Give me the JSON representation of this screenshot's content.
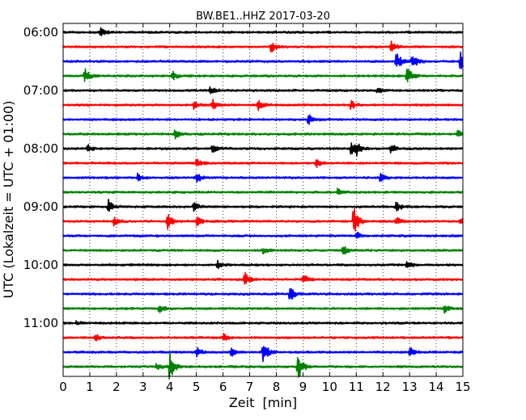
{
  "chart_data": {
    "type": "line",
    "title": "BW.BE1..HHZ 2017-03-20",
    "xlabel": "Zeit  [min]",
    "ylabel": "UTC (Lokalzeit = UTC + 01:00)",
    "xlim": [
      0,
      15
    ],
    "x_ticks": [
      "0",
      "1",
      "2",
      "3",
      "4",
      "5",
      "6",
      "7",
      "8",
      "9",
      "10",
      "11",
      "12",
      "13",
      "14",
      "15"
    ],
    "y_tick_labels": [
      "06:00",
      "07:00",
      "08:00",
      "09:00",
      "10:00",
      "11:00"
    ],
    "y_tick_rows": [
      0,
      4,
      8,
      12,
      16,
      20
    ],
    "grid": "vertical dotted",
    "trace_colors": [
      "#000000",
      "#ff0000",
      "#0000ff",
      "#008000"
    ],
    "row_minutes": 15,
    "rows": [
      {
        "start": "06:00",
        "color": "#000000",
        "events": [
          [
            1.4,
            0.4
          ]
        ]
      },
      {
        "start": "06:15",
        "color": "#ff0000",
        "events": [
          [
            7.8,
            0.5
          ],
          [
            12.3,
            0.6
          ]
        ]
      },
      {
        "start": "06:30",
        "color": "#0000ff",
        "events": [
          [
            12.5,
            1.0
          ],
          [
            13.1,
            0.8
          ],
          [
            14.9,
            1.0
          ]
        ]
      },
      {
        "start": "06:45",
        "color": "#008000",
        "events": [
          [
            0.8,
            0.8
          ],
          [
            4.1,
            0.4
          ],
          [
            12.9,
            1.0
          ]
        ]
      },
      {
        "start": "07:00",
        "color": "#000000",
        "events": [
          [
            5.5,
            0.4
          ],
          [
            11.8,
            0.3
          ]
        ]
      },
      {
        "start": "07:15",
        "color": "#ff0000",
        "events": [
          [
            4.9,
            0.4
          ],
          [
            5.6,
            0.5
          ],
          [
            7.3,
            0.5
          ],
          [
            10.8,
            0.4
          ]
        ]
      },
      {
        "start": "07:30",
        "color": "#0000ff",
        "events": [
          [
            9.2,
            0.6
          ]
        ]
      },
      {
        "start": "07:45",
        "color": "#008000",
        "events": [
          [
            4.2,
            0.4
          ],
          [
            14.8,
            0.4
          ]
        ]
      },
      {
        "start": "08:00",
        "color": "#000000",
        "events": [
          [
            0.9,
            0.4
          ],
          [
            5.6,
            0.4
          ],
          [
            10.8,
            0.6
          ],
          [
            11.0,
            0.6
          ],
          [
            12.3,
            0.5
          ]
        ]
      },
      {
        "start": "08:15",
        "color": "#ff0000",
        "events": [
          [
            5.0,
            0.5
          ],
          [
            9.5,
            0.5
          ]
        ]
      },
      {
        "start": "08:30",
        "color": "#0000ff",
        "events": [
          [
            2.8,
            0.4
          ],
          [
            5.0,
            0.5
          ],
          [
            11.9,
            0.4
          ]
        ]
      },
      {
        "start": "08:45",
        "color": "#008000",
        "events": [
          [
            10.3,
            0.3
          ]
        ]
      },
      {
        "start": "09:00",
        "color": "#000000",
        "events": [
          [
            1.7,
            0.7
          ],
          [
            4.9,
            0.5
          ],
          [
            12.5,
            0.5
          ]
        ]
      },
      {
        "start": "09:15",
        "color": "#ff0000",
        "events": [
          [
            1.9,
            0.4
          ],
          [
            3.9,
            0.8
          ],
          [
            5.0,
            0.5
          ],
          [
            10.9,
            1.7
          ],
          [
            12.5,
            0.4
          ],
          [
            14.9,
            0.4
          ]
        ]
      },
      {
        "start": "09:30",
        "color": "#0000ff",
        "events": [
          [
            11.0,
            0.4
          ]
        ]
      },
      {
        "start": "09:45",
        "color": "#008000",
        "events": [
          [
            10.5,
            0.5
          ],
          [
            7.5,
            0.3
          ]
        ]
      },
      {
        "start": "10:00",
        "color": "#000000",
        "events": [
          [
            5.8,
            0.4
          ],
          [
            12.9,
            0.4
          ]
        ]
      },
      {
        "start": "10:15",
        "color": "#ff0000",
        "events": [
          [
            6.8,
            0.8
          ],
          [
            9.0,
            0.5
          ]
        ]
      },
      {
        "start": "10:30",
        "color": "#0000ff",
        "events": [
          [
            8.5,
            0.8
          ]
        ]
      },
      {
        "start": "10:45",
        "color": "#008000",
        "events": [
          [
            3.6,
            0.5
          ],
          [
            14.3,
            0.4
          ]
        ]
      },
      {
        "start": "11:00",
        "color": "#000000",
        "events": [
          [
            0.5,
            0.2
          ]
        ]
      },
      {
        "start": "11:15",
        "color": "#ff0000",
        "events": [
          [
            1.2,
            0.4
          ],
          [
            6.0,
            0.4
          ]
        ]
      },
      {
        "start": "11:30",
        "color": "#0000ff",
        "events": [
          [
            5.0,
            0.5
          ],
          [
            6.3,
            0.4
          ],
          [
            7.5,
            1.1
          ],
          [
            13.0,
            0.5
          ]
        ]
      },
      {
        "start": "11:45",
        "color": "#008000",
        "events": [
          [
            3.5,
            0.4
          ],
          [
            4.0,
            1.7
          ],
          [
            8.8,
            1.6
          ]
        ]
      }
    ]
  }
}
